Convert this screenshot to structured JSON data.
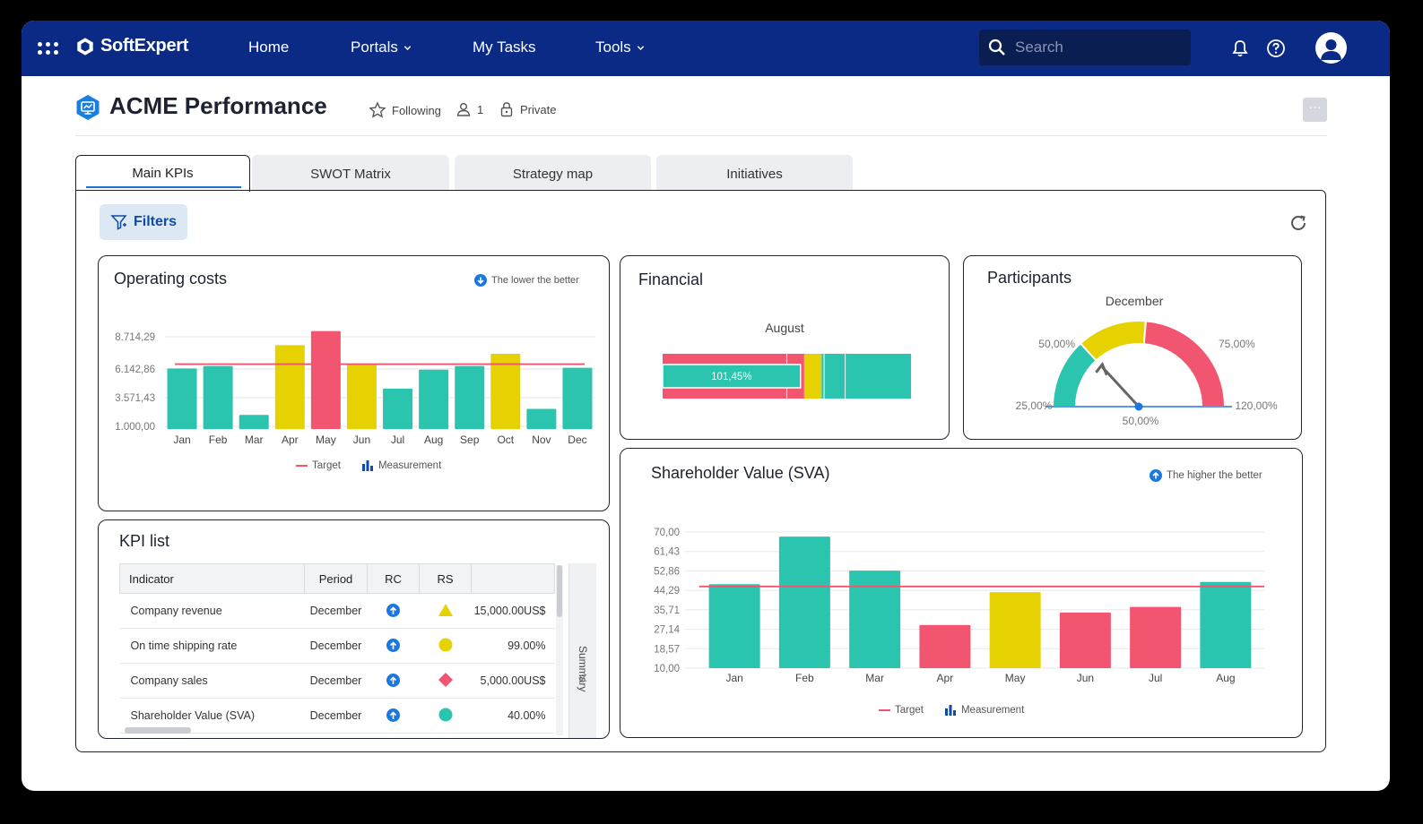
{
  "app": {
    "brand": "SoftExpert",
    "nav": [
      {
        "label": "Home",
        "dropdown": false
      },
      {
        "label": "Portals",
        "dropdown": true
      },
      {
        "label": "My Tasks",
        "dropdown": false
      },
      {
        "label": "Tools",
        "dropdown": true
      }
    ],
    "search_placeholder": "Search",
    "colors": {
      "nav_bg": "#0a2a86",
      "teal": "#2bc4ae",
      "yellow": "#e6d200",
      "red": "#f2556f",
      "blue": "#1b78e0"
    }
  },
  "page": {
    "title": "ACME Performance",
    "following": "Following",
    "members": "1",
    "privacy": "Private",
    "tabs": [
      {
        "label": "Main KPIs",
        "active": true
      },
      {
        "label": "SWOT Matrix",
        "active": false
      },
      {
        "label": "Strategy map",
        "active": false
      },
      {
        "label": "Initiatives",
        "active": false
      }
    ],
    "filters_label": "Filters"
  },
  "operating_costs": {
    "title": "Operating costs",
    "hint": "The lower the better",
    "legend_target": "Target",
    "legend_measurement": "Measurement"
  },
  "financial": {
    "title": "Financial",
    "period": "August",
    "value_label": "101,45%"
  },
  "participants": {
    "title": "Participants",
    "period": "December",
    "labels": [
      "25,00%",
      "50,00%",
      "75,00%",
      "120,00%"
    ],
    "value_label": "50,00%"
  },
  "sva": {
    "title": "Shareholder Value (SVA)",
    "hint": "The higher the better",
    "legend_target": "Target",
    "legend_measurement": "Measurement"
  },
  "kpi_list": {
    "title": "KPI list",
    "columns": [
      "Indicator",
      "Period",
      "RC",
      "RS"
    ],
    "summary_label": "Summary",
    "rows": [
      {
        "indicator": "Company revenue",
        "period": "December",
        "rs_shape": "triangle",
        "rs_color": "#e6d200",
        "value": "15,000.00US$"
      },
      {
        "indicator": "On time shipping rate",
        "period": "December",
        "rs_shape": "circle",
        "rs_color": "#e6d200",
        "value": "99.00%"
      },
      {
        "indicator": "Company sales",
        "period": "December",
        "rs_shape": "diamond",
        "rs_color": "#f2556f",
        "value": "5,000.00US$"
      },
      {
        "indicator": "Shareholder Value (SVA)",
        "period": "December",
        "rs_shape": "circle",
        "rs_color": "#2bc4ae",
        "value": "40.00%"
      }
    ]
  },
  "chart_data": [
    {
      "id": "operating_costs",
      "type": "bar",
      "title": "Operating costs",
      "categories": [
        "Jan",
        "Feb",
        "Mar",
        "Apr",
        "May",
        "Jun",
        "Jul",
        "Aug",
        "Sep",
        "Oct",
        "Nov",
        "Dec"
      ],
      "series": [
        {
          "name": "Measurement",
          "values": [
            5950,
            6150,
            2150,
            7850,
            9000,
            6250,
            4300,
            5850,
            6150,
            7150,
            2650,
            6000
          ],
          "colors": [
            "#2bc4ae",
            "#2bc4ae",
            "#2bc4ae",
            "#e6d200",
            "#f2556f",
            "#e6d200",
            "#2bc4ae",
            "#2bc4ae",
            "#2bc4ae",
            "#e6d200",
            "#2bc4ae",
            "#2bc4ae"
          ]
        },
        {
          "name": "Target",
          "values": [
            6300,
            6300,
            6300,
            6300,
            6300,
            6300,
            6300,
            6300,
            6300,
            6300,
            6300,
            6300
          ]
        }
      ],
      "y_ticks": [
        "1.000,00",
        "3.571,43",
        "6.142,86",
        "8.714,29"
      ],
      "ylim": [
        1000,
        10000
      ],
      "grid": true,
      "legend": "bottom"
    },
    {
      "id": "sva",
      "type": "bar",
      "title": "Shareholder Value (SVA)",
      "categories": [
        "Jan",
        "Feb",
        "Mar",
        "Apr",
        "May",
        "Jun",
        "Jul",
        "Aug"
      ],
      "series": [
        {
          "name": "Measurement",
          "values": [
            47.0,
            68.0,
            53.0,
            29.0,
            43.5,
            34.5,
            37.0,
            48.0
          ],
          "colors": [
            "#2bc4ae",
            "#2bc4ae",
            "#2bc4ae",
            "#f2556f",
            "#e6d200",
            "#f2556f",
            "#f2556f",
            "#2bc4ae"
          ]
        },
        {
          "name": "Target",
          "values": [
            46,
            46,
            46,
            46,
            46,
            46,
            46,
            46
          ]
        }
      ],
      "y_ticks": [
        "10,00",
        "18,57",
        "27,14",
        "35,71",
        "44,29",
        "52,86",
        "61,43",
        "70,00"
      ],
      "ylim": [
        10,
        70
      ],
      "grid": true,
      "legend": "bottom"
    },
    {
      "id": "financial",
      "type": "bar",
      "orientation": "horizontal",
      "title": "Financial",
      "categories": [
        "August"
      ],
      "bands": [
        {
          "color": "#f2556f",
          "from": 0,
          "to": 57
        },
        {
          "color": "#e6d200",
          "from": 57,
          "to": 64
        },
        {
          "color": "#2bc4ae",
          "from": 64,
          "to": 100
        }
      ],
      "value_percent": 101.45
    },
    {
      "id": "participants",
      "type": "gauge",
      "title": "Participants",
      "categories": [
        "December"
      ],
      "bands": [
        {
          "color": "#2bc4ae",
          "from": 25,
          "to": 50
        },
        {
          "color": "#e6d200",
          "from": 50,
          "to": 75
        },
        {
          "color": "#f2556f",
          "from": 75,
          "to": 120
        }
      ],
      "range": [
        25,
        120
      ],
      "value": 50
    }
  ]
}
